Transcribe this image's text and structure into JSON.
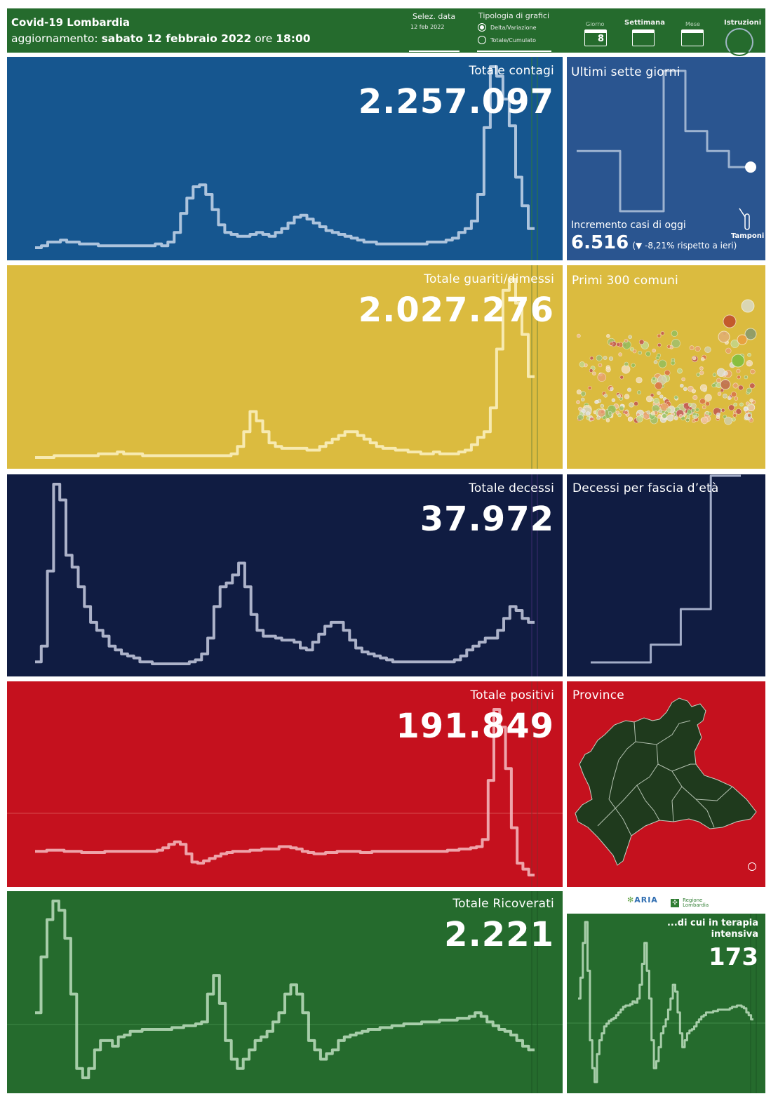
{
  "header": {
    "title": "Covid-19 Lombardia",
    "update_prefix": "aggiornamento:",
    "update_date": "sabato 12 febbraio 2022",
    "update_mid": "ore",
    "update_time": "18:00",
    "date_selector_label": "Selez. data",
    "date_selector_value": "12 feb 2022",
    "chart_type_label": "Tipologia di grafici",
    "chart_type_options": [
      "Delta/Variazione",
      "Totale/Cumulato"
    ],
    "chart_type_selected": "Delta/Variazione",
    "period_day_label": "Giorno",
    "period_day_number": "8",
    "period_week_label": "Settimana",
    "period_month_label": "Mese",
    "instructions_label": "Istruzioni",
    "colors": {
      "background": "#256b2d"
    }
  },
  "panels": {
    "contagi": {
      "title": "Totale contagi",
      "value": "2.257.097",
      "color": "#16568f"
    },
    "seven_days": {
      "title": "Ultimi sette giorni",
      "increment_label": "Incremento casi di oggi",
      "increment_value": "6.516",
      "change_open": "(",
      "change_arrow": "▼",
      "change_text": "-8,21% rispetto a  ieri)",
      "tamponi_label": "Tamponi",
      "color": "#2a5590"
    },
    "guariti": {
      "title": "Totale guariti/dimessi",
      "value": "2.027.276",
      "color": "#dbbb3f"
    },
    "comuni": {
      "title": "Primi 300 comuni",
      "color": "#dbbb3f"
    },
    "decessi": {
      "title": "Totale decessi",
      "value": "37.972",
      "color": "#101c42"
    },
    "eta": {
      "title": "Decessi per fascia d’età",
      "color": "#101c42"
    },
    "positivi": {
      "title": "Totale positivi",
      "value": "191.849",
      "color": "#c5111e"
    },
    "province": {
      "title": "Province",
      "color": "#c5111e",
      "map_color": "#1f3a1d"
    },
    "ricoverati": {
      "title": "Totale Ricoverati",
      "value": "2.221",
      "color": "#256b2d"
    },
    "terapia": {
      "title": "...di cui in terapia intensiva",
      "value": "173",
      "color": "#256b2d"
    },
    "logos": {
      "aria": "ARIA",
      "regione": "Regione Lombardia"
    }
  },
  "chart_data": [
    {
      "type": "line",
      "name": "contagi",
      "values": [
        2,
        3,
        5,
        5,
        6,
        5,
        5,
        4,
        4,
        4,
        3,
        3,
        3,
        3,
        3,
        3,
        3,
        3,
        3,
        4,
        3,
        5,
        10,
        20,
        28,
        34,
        35,
        30,
        22,
        14,
        10,
        9,
        8,
        8,
        9,
        10,
        9,
        8,
        10,
        12,
        15,
        18,
        19,
        17,
        15,
        13,
        11,
        10,
        9,
        8,
        7,
        6,
        5,
        5,
        4,
        4,
        4,
        4,
        4,
        4,
        4,
        4,
        5,
        5,
        5,
        6,
        7,
        10,
        12,
        16,
        30,
        65,
        97,
        92,
        80,
        66,
        39,
        24,
        12
      ]
    },
    {
      "type": "line",
      "name": "guariti",
      "values": [
        1,
        1,
        1,
        2,
        2,
        2,
        2,
        2,
        2,
        2,
        3,
        3,
        3,
        4,
        3,
        3,
        3,
        2,
        2,
        2,
        2,
        2,
        2,
        2,
        2,
        2,
        2,
        2,
        2,
        2,
        2,
        3,
        7,
        15,
        26,
        21,
        15,
        9,
        7,
        6,
        6,
        6,
        6,
        5,
        5,
        7,
        9,
        11,
        13,
        15,
        15,
        13,
        11,
        9,
        7,
        6,
        6,
        5,
        5,
        4,
        4,
        3,
        3,
        4,
        3,
        3,
        3,
        4,
        5,
        8,
        12,
        15,
        28,
        60,
        92,
        98,
        85,
        68,
        45
      ]
    },
    {
      "type": "line",
      "name": "decessi",
      "values": [
        2,
        10,
        48,
        92,
        84,
        56,
        50,
        40,
        30,
        22,
        18,
        15,
        10,
        8,
        6,
        5,
        4,
        2,
        2,
        1,
        1,
        1,
        1,
        1,
        1,
        2,
        3,
        6,
        14,
        30,
        40,
        42,
        46,
        52,
        40,
        26,
        18,
        15,
        15,
        14,
        13,
        13,
        12,
        9,
        8,
        12,
        16,
        20,
        22,
        22,
        18,
        13,
        9,
        7,
        6,
        5,
        4,
        3,
        2,
        2,
        2,
        2,
        2,
        2,
        2,
        2,
        2,
        2,
        3,
        5,
        8,
        10,
        12,
        14,
        14,
        18,
        24,
        30,
        28,
        24,
        22
      ]
    },
    {
      "type": "line",
      "name": "positivi",
      "values": [
        0,
        0,
        1,
        1,
        1,
        0,
        0,
        0,
        -1,
        -1,
        -1,
        -1,
        0,
        0,
        0,
        0,
        0,
        0,
        0,
        0,
        0,
        1,
        3,
        6,
        8,
        6,
        -2,
        -9,
        -10,
        -8,
        -6,
        -4,
        -2,
        -1,
        0,
        0,
        0,
        1,
        1,
        2,
        2,
        2,
        4,
        4,
        3,
        2,
        0,
        -1,
        -2,
        -2,
        -1,
        -1,
        0,
        0,
        0,
        0,
        -1,
        -1,
        0,
        0,
        0,
        0,
        0,
        0,
        0,
        0,
        0,
        0,
        0,
        0,
        0,
        1,
        1,
        2,
        2,
        3,
        4,
        10,
        60,
        120,
        105,
        70,
        20,
        -10,
        -15,
        -20
      ]
    },
    {
      "type": "line",
      "name": "ricoverati",
      "values": [
        10,
        40,
        60,
        70,
        65,
        50,
        20,
        -20,
        -25,
        -20,
        -10,
        -5,
        -5,
        -8,
        -3,
        -2,
        0,
        0,
        1,
        1,
        1,
        1,
        1,
        2,
        2,
        3,
        3,
        4,
        5,
        20,
        30,
        15,
        -5,
        -15,
        -20,
        -15,
        -10,
        -5,
        -3,
        0,
        5,
        10,
        20,
        25,
        20,
        10,
        -5,
        -10,
        -15,
        -12,
        -10,
        -5,
        -3,
        -2,
        -1,
        0,
        1,
        1,
        2,
        2,
        3,
        3,
        4,
        4,
        4,
        5,
        5,
        5,
        6,
        6,
        6,
        7,
        7,
        8,
        10,
        8,
        5,
        3,
        1,
        0,
        -2,
        -5,
        -8,
        -10
      ]
    },
    {
      "type": "line",
      "name": "terapia",
      "values": [
        20,
        35,
        60,
        75,
        40,
        -10,
        -30,
        -40,
        -20,
        -10,
        -5,
        0,
        2,
        4,
        5,
        6,
        8,
        10,
        12,
        14,
        15,
        15,
        16,
        18,
        17,
        20,
        30,
        45,
        60,
        40,
        20,
        -10,
        -30,
        -25,
        -15,
        -5,
        0,
        5,
        12,
        20,
        30,
        25,
        10,
        -5,
        -15,
        -10,
        -5,
        -3,
        -2,
        0,
        3,
        5,
        7,
        8,
        10,
        10,
        10,
        11,
        11,
        12,
        12,
        12,
        12,
        12,
        13,
        14,
        14,
        15,
        15,
        14,
        13,
        10,
        8,
        5
      ]
    },
    {
      "type": "line",
      "name": "ultimi_sette_giorni",
      "values": [
        5.5,
        5.5,
        2.5,
        2.5,
        9.5,
        6.5,
        5.5,
        4.7
      ]
    },
    {
      "type": "line",
      "name": "decessi_per_eta",
      "values": [
        0.5,
        0.5,
        1.5,
        3.5,
        11
      ]
    }
  ]
}
